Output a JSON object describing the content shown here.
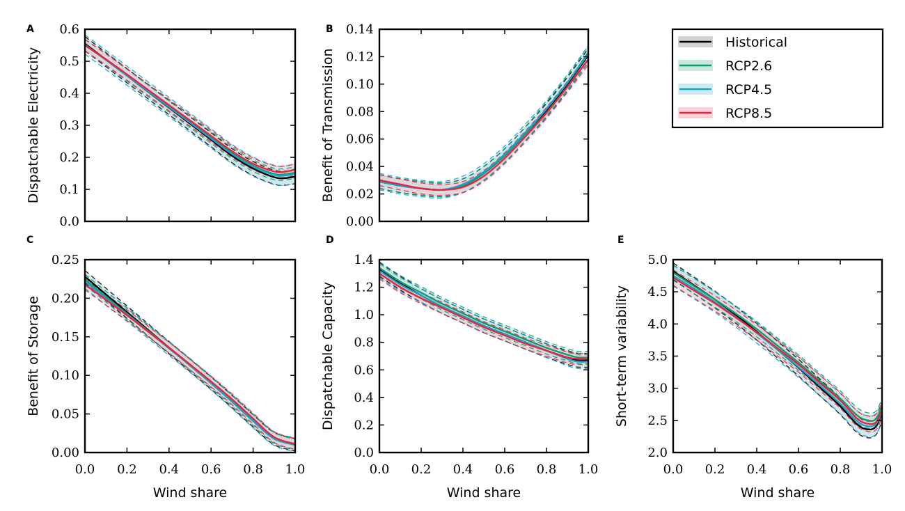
{
  "colors": {
    "Historical": "#000000",
    "RCP2.6": "#0f9d6e",
    "RCP4.5": "#1aa3c9",
    "RCP8.5": "#e8233f",
    "band_Historical": "#c8c8c8",
    "band_RCP2.6": "#b9e3d3",
    "band_RCP4.5": "#bfe6f3",
    "band_RCP8.5": "#f7c6cf"
  },
  "legend": {
    "position": "top-right",
    "entries": [
      "Historical",
      "RCP2.6",
      "RCP4.5",
      "RCP8.5"
    ]
  },
  "chart_data": [
    {
      "id": "A",
      "panel_label": "A",
      "type": "line",
      "xlabel": "",
      "ylabel": "Dispatchable Electricity",
      "xlim": [
        0.0,
        1.0
      ],
      "ylim": [
        0.0,
        0.6
      ],
      "xticks": [
        0.0,
        0.2,
        0.4,
        0.6,
        0.8,
        1.0
      ],
      "xtick_labels": [],
      "yticks": [
        0.0,
        0.1,
        0.2,
        0.3,
        0.4,
        0.5,
        0.6
      ],
      "ytick_labels": [
        "0.0",
        "0.1",
        "0.2",
        "0.3",
        "0.4",
        "0.5",
        "0.6"
      ],
      "x": [
        0.0,
        0.1,
        0.2,
        0.3,
        0.4,
        0.5,
        0.6,
        0.7,
        0.8,
        0.9,
        0.95,
        1.0
      ],
      "series": [
        {
          "name": "Historical",
          "values": [
            0.555,
            0.505,
            0.455,
            0.405,
            0.355,
            0.305,
            0.255,
            0.205,
            0.165,
            0.138,
            0.135,
            0.14
          ],
          "band": 0.022
        },
        {
          "name": "RCP2.6",
          "values": [
            0.55,
            0.505,
            0.457,
            0.408,
            0.36,
            0.311,
            0.262,
            0.214,
            0.174,
            0.148,
            0.147,
            0.152
          ],
          "band": 0.018
        },
        {
          "name": "RCP4.5",
          "values": [
            0.552,
            0.504,
            0.455,
            0.406,
            0.357,
            0.308,
            0.259,
            0.21,
            0.171,
            0.145,
            0.143,
            0.149
          ],
          "band": 0.03
        },
        {
          "name": "RCP8.5",
          "values": [
            0.55,
            0.506,
            0.459,
            0.411,
            0.363,
            0.315,
            0.267,
            0.219,
            0.18,
            0.156,
            0.155,
            0.162
          ],
          "band": 0.018
        }
      ]
    },
    {
      "id": "B",
      "panel_label": "B",
      "type": "line",
      "xlabel": "",
      "ylabel": "Benefit of Transmission",
      "xlim": [
        0.0,
        1.0
      ],
      "ylim": [
        0.0,
        0.14
      ],
      "xticks": [
        0.0,
        0.2,
        0.4,
        0.6,
        0.8,
        1.0
      ],
      "xtick_labels": [],
      "yticks": [
        0.0,
        0.02,
        0.04,
        0.06,
        0.08,
        0.1,
        0.12,
        0.14
      ],
      "ytick_labels": [
        "0.00",
        "0.02",
        "0.04",
        "0.06",
        "0.08",
        "0.10",
        "0.12",
        "0.14"
      ],
      "x": [
        0.0,
        0.1,
        0.2,
        0.3,
        0.4,
        0.5,
        0.6,
        0.7,
        0.8,
        0.9,
        1.0
      ],
      "series": [
        {
          "name": "Historical",
          "values": [
            0.029,
            0.026,
            0.024,
            0.023,
            0.026,
            0.035,
            0.048,
            0.064,
            0.081,
            0.1,
            0.121
          ],
          "band": 0.005
        },
        {
          "name": "RCP2.6",
          "values": [
            0.029,
            0.026,
            0.024,
            0.023,
            0.026,
            0.035,
            0.048,
            0.064,
            0.082,
            0.101,
            0.123
          ],
          "band": 0.005
        },
        {
          "name": "RCP4.5",
          "values": [
            0.029,
            0.026,
            0.024,
            0.023,
            0.027,
            0.036,
            0.049,
            0.065,
            0.082,
            0.101,
            0.122
          ],
          "band": 0.006
        },
        {
          "name": "RCP8.5",
          "values": [
            0.03,
            0.027,
            0.024,
            0.023,
            0.025,
            0.033,
            0.046,
            0.062,
            0.079,
            0.098,
            0.118
          ],
          "band": 0.004
        }
      ]
    },
    {
      "id": "C",
      "panel_label": "C",
      "type": "line",
      "xlabel": "Wind share",
      "ylabel": "Benefit of Storage",
      "xlim": [
        0.0,
        1.0
      ],
      "ylim": [
        0.0,
        0.25
      ],
      "xticks": [
        0.0,
        0.2,
        0.4,
        0.6,
        0.8,
        1.0
      ],
      "xtick_labels": [
        "0.0",
        "0.2",
        "0.4",
        "0.6",
        "0.8",
        "1.0"
      ],
      "yticks": [
        0.0,
        0.05,
        0.1,
        0.15,
        0.2,
        0.25
      ],
      "ytick_labels": [
        "0.00",
        "0.05",
        "0.10",
        "0.15",
        "0.20",
        "0.25"
      ],
      "x": [
        0.0,
        0.1,
        0.2,
        0.3,
        0.4,
        0.5,
        0.6,
        0.7,
        0.8,
        0.9,
        1.0
      ],
      "series": [
        {
          "name": "Historical",
          "values": [
            0.228,
            0.205,
            0.182,
            0.159,
            0.136,
            0.113,
            0.09,
            0.066,
            0.041,
            0.018,
            0.01
          ],
          "band": 0.008
        },
        {
          "name": "RCP2.6",
          "values": [
            0.224,
            0.202,
            0.18,
            0.158,
            0.136,
            0.114,
            0.091,
            0.067,
            0.042,
            0.019,
            0.01
          ],
          "band": 0.007
        },
        {
          "name": "RCP4.5",
          "values": [
            0.222,
            0.2,
            0.179,
            0.157,
            0.135,
            0.113,
            0.09,
            0.066,
            0.041,
            0.018,
            0.01
          ],
          "band": 0.009
        },
        {
          "name": "RCP8.5",
          "values": [
            0.218,
            0.198,
            0.178,
            0.157,
            0.136,
            0.114,
            0.092,
            0.069,
            0.044,
            0.02,
            0.011
          ],
          "band": 0.007
        }
      ]
    },
    {
      "id": "D",
      "panel_label": "D",
      "type": "line",
      "xlabel": "Wind share",
      "ylabel": "Dispatchable Capacity",
      "xlim": [
        0.0,
        1.0
      ],
      "ylim": [
        0.0,
        1.4
      ],
      "xticks": [
        0.0,
        0.2,
        0.4,
        0.6,
        0.8,
        1.0
      ],
      "xtick_labels": [
        "0.0",
        "0.2",
        "0.4",
        "0.6",
        "0.8",
        "1.0"
      ],
      "yticks": [
        0.0,
        0.2,
        0.4,
        0.6,
        0.8,
        1.0,
        1.2,
        1.4
      ],
      "ytick_labels": [
        "0.0",
        "0.2",
        "0.4",
        "0.6",
        "0.8",
        "1.0",
        "1.2",
        "1.4"
      ],
      "x": [
        0.0,
        0.1,
        0.2,
        0.3,
        0.4,
        0.5,
        0.6,
        0.7,
        0.8,
        0.9,
        0.95,
        1.0
      ],
      "series": [
        {
          "name": "Historical",
          "values": [
            1.33,
            1.23,
            1.14,
            1.06,
            0.99,
            0.92,
            0.86,
            0.8,
            0.74,
            0.69,
            0.67,
            0.67
          ],
          "band": 0.05
        },
        {
          "name": "RCP2.6",
          "values": [
            1.34,
            1.24,
            1.16,
            1.08,
            1.01,
            0.94,
            0.88,
            0.82,
            0.76,
            0.71,
            0.69,
            0.69
          ],
          "band": 0.045
        },
        {
          "name": "RCP4.5",
          "values": [
            1.32,
            1.22,
            1.14,
            1.06,
            0.99,
            0.92,
            0.86,
            0.8,
            0.74,
            0.68,
            0.66,
            0.66
          ],
          "band": 0.05
        },
        {
          "name": "RCP8.5",
          "values": [
            1.3,
            1.2,
            1.12,
            1.05,
            0.98,
            0.91,
            0.85,
            0.79,
            0.74,
            0.69,
            0.68,
            0.68
          ],
          "band": 0.04
        }
      ]
    },
    {
      "id": "E",
      "panel_label": "E",
      "type": "line",
      "xlabel": "Wind share",
      "ylabel": "Short-term variability",
      "xlim": [
        0.0,
        1.0
      ],
      "ylim": [
        2.0,
        5.0
      ],
      "xticks": [
        0.0,
        0.2,
        0.4,
        0.6,
        0.8,
        1.0
      ],
      "xtick_labels": [
        "0.0",
        "0.2",
        "0.4",
        "0.6",
        "0.8",
        "1.0"
      ],
      "yticks": [
        2.0,
        2.5,
        3.0,
        3.5,
        4.0,
        4.5,
        5.0
      ],
      "ytick_labels": [
        "2.0",
        "2.5",
        "3.0",
        "3.5",
        "4.0",
        "4.5",
        "5.0"
      ],
      "x": [
        0.0,
        0.1,
        0.2,
        0.3,
        0.4,
        0.5,
        0.6,
        0.7,
        0.8,
        0.88,
        0.93,
        0.97,
        1.0
      ],
      "series": [
        {
          "name": "Historical",
          "values": [
            4.82,
            4.6,
            4.38,
            4.14,
            3.88,
            3.6,
            3.32,
            3.02,
            2.72,
            2.44,
            2.36,
            2.4,
            2.62
          ],
          "band": 0.13
        },
        {
          "name": "RCP2.6",
          "values": [
            4.8,
            4.59,
            4.38,
            4.16,
            3.92,
            3.66,
            3.4,
            3.12,
            2.84,
            2.58,
            2.5,
            2.52,
            2.72
          ],
          "band": 0.12
        },
        {
          "name": "RCP4.5",
          "values": [
            4.75,
            4.55,
            4.34,
            4.11,
            3.86,
            3.6,
            3.33,
            3.05,
            2.76,
            2.49,
            2.41,
            2.44,
            2.64
          ],
          "band": 0.16
        },
        {
          "name": "RCP8.5",
          "values": [
            4.72,
            4.52,
            4.32,
            4.1,
            3.87,
            3.62,
            3.37,
            3.09,
            2.81,
            2.53,
            2.45,
            2.47,
            2.66
          ],
          "band": 0.12
        }
      ]
    }
  ]
}
